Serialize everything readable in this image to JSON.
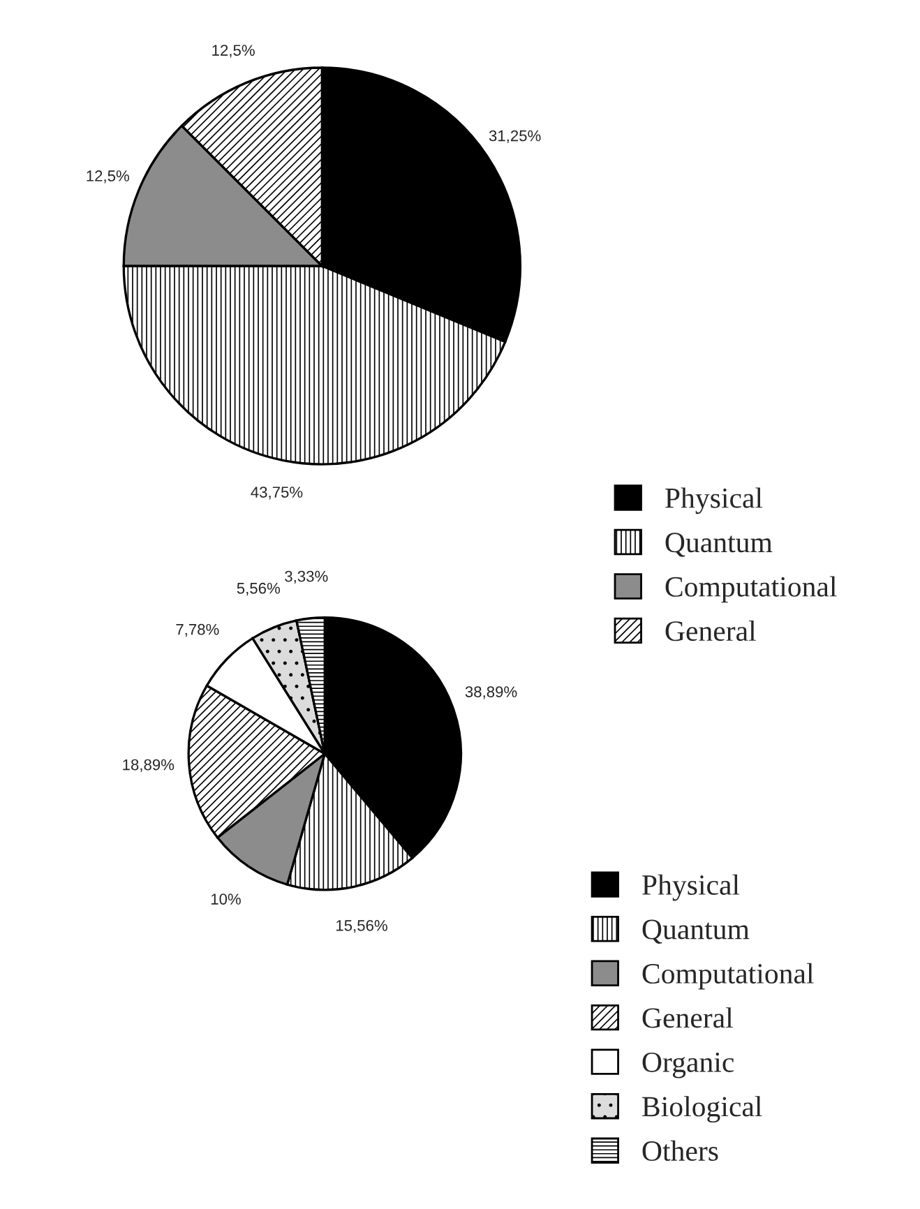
{
  "chart_data": [
    {
      "type": "pie",
      "categories": [
        "Physical",
        "Quantum",
        "Computational",
        "General"
      ],
      "values": [
        31.25,
        43.75,
        12.5,
        12.5
      ],
      "value_labels": [
        "31,25%",
        "43,75%",
        "12,5%",
        "12,5%"
      ],
      "colors": [
        "#000000",
        "#ffffff",
        "#8c8c8c",
        "#ffffff"
      ],
      "legend": "right"
    },
    {
      "type": "pie",
      "categories": [
        "Physical",
        "Quantum",
        "Computational",
        "General",
        "Organic",
        "Biological",
        "Others"
      ],
      "values": [
        38.89,
        15.56,
        10,
        18.89,
        7.78,
        5.56,
        3.33
      ],
      "value_labels": [
        "38,89%",
        "15,56%",
        "10%",
        "18,89%",
        "7,78%",
        "5,56%",
        "3,33%"
      ],
      "colors": [
        "#000000",
        "#ffffff",
        "#8c8c8c",
        "#ffffff",
        "#ffffff",
        "#dcdcdc",
        "#ffffff"
      ],
      "legend": "right"
    }
  ]
}
